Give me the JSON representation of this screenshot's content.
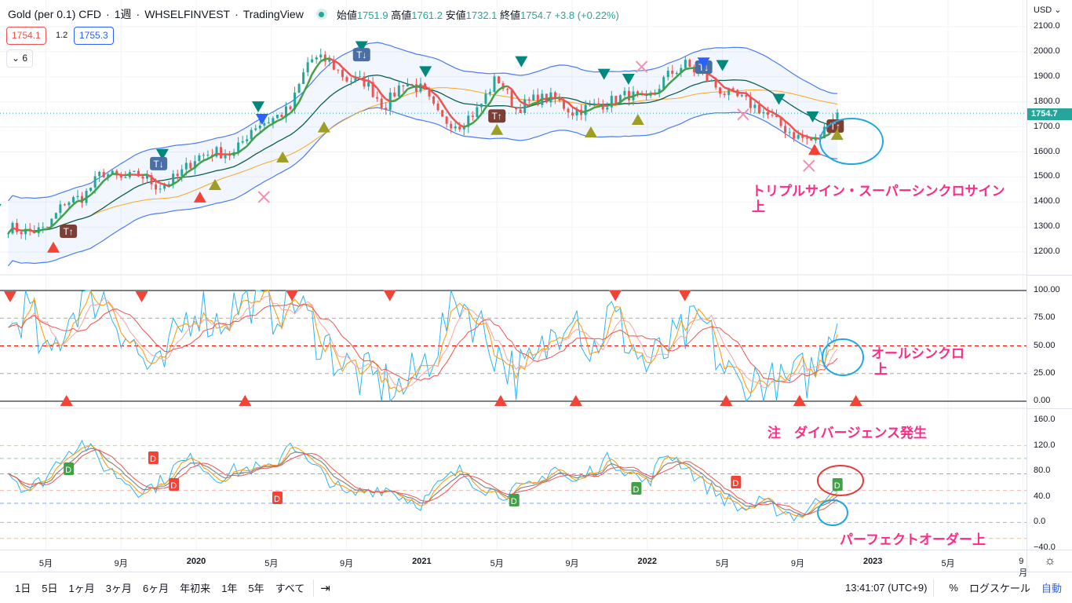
{
  "header": {
    "symbol": "Gold (per 0.1) CFD",
    "interval": "1週",
    "exchange": "WHSELFINVEST",
    "source": "TradingView",
    "open_label": "始値",
    "open": "1751.9",
    "high_label": "高値",
    "high": "1761.2",
    "low_label": "安値",
    "low": "1732.1",
    "close_label": "終値",
    "close": "1754.7",
    "change": "+3.8 (+0.22%)",
    "bid": "1754.1",
    "spread": "1.2",
    "ask": "1755.3",
    "collapse_count": "6"
  },
  "price_axis": {
    "currency": "USD",
    "ticks": [
      "2100.0",
      "2000.0",
      "1900.0",
      "1800.0",
      "1700.0",
      "1600.0",
      "1500.0",
      "1400.0",
      "1300.0",
      "1200.0"
    ],
    "last_price": "1754.7"
  },
  "osc1_axis": {
    "ticks": [
      "100.00",
      "75.00",
      "50.00",
      "25.00",
      "0.00"
    ]
  },
  "osc2_axis": {
    "ticks": [
      "160.0",
      "120.0",
      "80.0",
      "40.0",
      "0.0",
      "−40.0"
    ]
  },
  "time_axis": [
    "5月",
    "9月",
    "2020",
    "5月",
    "9月",
    "2021",
    "5月",
    "9月",
    "2022",
    "5月",
    "9月",
    "2023",
    "5月",
    "9月"
  ],
  "annotations": {
    "triple": "トリプルサイン・スーパーシンクロサイン",
    "triple2": "上",
    "allsync": "オールシンクロ",
    "allsync2": "上",
    "divergence": "注　ダイバージェンス発生",
    "perfect": "パーフェクトオーダー上"
  },
  "bottom_bar": {
    "ranges": [
      "1日",
      "5日",
      "1ヶ月",
      "3ヶ月",
      "6ヶ月",
      "年初来",
      "1年",
      "5年",
      "すべて"
    ],
    "clock": "13:41:07 (UTC+9)",
    "percent": "%",
    "log": "ログスケール",
    "auto": "自動"
  },
  "colors": {
    "up": "#26a69a",
    "down": "#ef5350",
    "band": "#4d7cf7",
    "accent": "#2962ff"
  },
  "chart_data": {
    "type": "candlestick",
    "start_month": "2019-03",
    "monthly_close": [
      1300,
      1280,
      1290,
      1400,
      1420,
      1520,
      1490,
      1510,
      1460,
      1500,
      1580,
      1600,
      1590,
      1700,
      1730,
      1770,
      1970,
      1965,
      1890,
      1880,
      1780,
      1880,
      1850,
      1730,
      1710,
      1770,
      1900,
      1770,
      1810,
      1815,
      1760,
      1780,
      1800,
      1830,
      1800,
      1900,
      1950,
      1900,
      1840,
      1810,
      1770,
      1710,
      1660,
      1640,
      1755
    ],
    "osc1_monthly": [
      60,
      90,
      30,
      70,
      98,
      95,
      70,
      40,
      20,
      60,
      90,
      70,
      85,
      95,
      80,
      98,
      70,
      50,
      30,
      20,
      15,
      10,
      30,
      60,
      95,
      70,
      45,
      25,
      30,
      60,
      95,
      40,
      80,
      55,
      30,
      45,
      60,
      70,
      30,
      10,
      20,
      10,
      20,
      30,
      80
    ],
    "osc2_monthly": [
      80,
      50,
      70,
      110,
      125,
      90,
      70,
      50,
      60,
      90,
      100,
      70,
      80,
      85,
      80,
      130,
      90,
      70,
      40,
      50,
      55,
      40,
      30,
      60,
      80,
      60,
      45,
      50,
      55,
      90,
      60,
      80,
      100,
      80,
      60,
      110,
      90,
      60,
      40,
      20,
      30,
      20,
      10,
      30,
      60
    ],
    "markers": [
      {
        "m": 1.3,
        "p": 1370,
        "t": "tdown"
      },
      {
        "m": 4.4,
        "p": 1220,
        "t": "rup"
      },
      {
        "m": 5.2,
        "p": 1285,
        "t": "Tup"
      },
      {
        "m": 10.2,
        "p": 1590,
        "t": "tdown"
      },
      {
        "m": 10.0,
        "p": 1555,
        "t": "Tdn"
      },
      {
        "m": 12.2,
        "p": 1420,
        "t": "rup"
      },
      {
        "m": 13,
        "p": 1470,
        "t": "oup"
      },
      {
        "m": 15.3,
        "p": 1780,
        "t": "tdown"
      },
      {
        "m": 15.5,
        "p": 1730,
        "t": "bdown"
      },
      {
        "m": 15.6,
        "p": 1420,
        "t": "x"
      },
      {
        "m": 16.6,
        "p": 1580,
        "t": "oup"
      },
      {
        "m": 18.8,
        "p": 1700,
        "t": "oup"
      },
      {
        "m": 20.8,
        "p": 2020,
        "t": "tdown"
      },
      {
        "m": 20.8,
        "p": 1990,
        "t": "Tdn"
      },
      {
        "m": 24.2,
        "p": 1920,
        "t": "tdown"
      },
      {
        "m": 28,
        "p": 1745,
        "t": "Tup"
      },
      {
        "m": 28,
        "p": 1690,
        "t": "oup"
      },
      {
        "m": 29.3,
        "p": 1960,
        "t": "tdown"
      },
      {
        "m": 33,
        "p": 1680,
        "t": "oup"
      },
      {
        "m": 33.7,
        "p": 1910,
        "t": "tdown"
      },
      {
        "m": 35,
        "p": 1890,
        "t": "tdown"
      },
      {
        "m": 35.5,
        "p": 1730,
        "t": "oup"
      },
      {
        "m": 35.7,
        "p": 1940,
        "t": "x"
      },
      {
        "m": 39,
        "p": 1940,
        "t": "Tdn"
      },
      {
        "m": 39,
        "p": 1955,
        "t": "bdown"
      },
      {
        "m": 40,
        "p": 1945,
        "t": "tdown"
      },
      {
        "m": 41.1,
        "p": 1750,
        "t": "x"
      },
      {
        "m": 43,
        "p": 1810,
        "t": "tdown"
      },
      {
        "m": 44.8,
        "p": 1740,
        "t": "tdown"
      },
      {
        "m": 44.9,
        "p": 1610,
        "t": "rup"
      },
      {
        "m": 44.6,
        "p": 1545,
        "t": "x"
      },
      {
        "m": 46.0,
        "p": 1705,
        "t": "Tup"
      },
      {
        "m": 46.1,
        "p": 1670,
        "t": "oup"
      }
    ]
  }
}
